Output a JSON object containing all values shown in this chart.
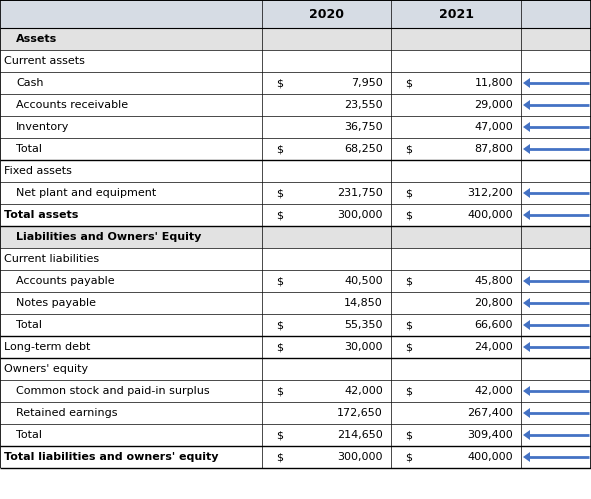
{
  "rows": [
    {
      "label": "Assets",
      "val2020": "",
      "val2021": "",
      "type": "section_bold",
      "indent": 1,
      "dollar2020": false,
      "dollar2021": false,
      "arrow": false
    },
    {
      "label": "Current assets",
      "val2020": "",
      "val2021": "",
      "type": "section",
      "indent": 0,
      "dollar2020": false,
      "dollar2021": false,
      "arrow": false
    },
    {
      "label": "Cash",
      "val2020": "7,950",
      "val2021": "11,800",
      "type": "item",
      "indent": 1,
      "dollar2020": true,
      "dollar2021": true,
      "arrow": true
    },
    {
      "label": "Accounts receivable",
      "val2020": "23,550",
      "val2021": "29,000",
      "type": "item",
      "indent": 1,
      "dollar2020": false,
      "dollar2021": false,
      "arrow": true
    },
    {
      "label": "Inventory",
      "val2020": "36,750",
      "val2021": "47,000",
      "type": "item",
      "indent": 1,
      "dollar2020": false,
      "dollar2021": false,
      "arrow": true
    },
    {
      "label": "Total",
      "val2020": "68,250",
      "val2021": "87,800",
      "type": "total",
      "indent": 1,
      "dollar2020": true,
      "dollar2021": true,
      "arrow": true
    },
    {
      "label": "Fixed assets",
      "val2020": "",
      "val2021": "",
      "type": "section",
      "indent": 0,
      "dollar2020": false,
      "dollar2021": false,
      "arrow": false
    },
    {
      "label": "Net plant and equipment",
      "val2020": "231,750",
      "val2021": "312,200",
      "type": "item",
      "indent": 1,
      "dollar2020": true,
      "dollar2021": true,
      "arrow": true
    },
    {
      "label": "Total assets",
      "val2020": "300,000",
      "val2021": "400,000",
      "type": "total_bold",
      "indent": 0,
      "dollar2020": true,
      "dollar2021": true,
      "arrow": true
    },
    {
      "label": "Liabilities and Owners' Equity",
      "val2020": "",
      "val2021": "",
      "type": "section_bold",
      "indent": 1,
      "dollar2020": false,
      "dollar2021": false,
      "arrow": false
    },
    {
      "label": "Current liabilities",
      "val2020": "",
      "val2021": "",
      "type": "section",
      "indent": 0,
      "dollar2020": false,
      "dollar2021": false,
      "arrow": false
    },
    {
      "label": "Accounts payable",
      "val2020": "40,500",
      "val2021": "45,800",
      "type": "item",
      "indent": 1,
      "dollar2020": true,
      "dollar2021": true,
      "arrow": true
    },
    {
      "label": "Notes payable",
      "val2020": "14,850",
      "val2021": "20,800",
      "type": "item",
      "indent": 1,
      "dollar2020": false,
      "dollar2021": false,
      "arrow": true
    },
    {
      "label": "Total",
      "val2020": "55,350",
      "val2021": "66,600",
      "type": "total",
      "indent": 1,
      "dollar2020": true,
      "dollar2021": true,
      "arrow": true
    },
    {
      "label": "Long-term debt",
      "val2020": "30,000",
      "val2021": "24,000",
      "type": "total",
      "indent": 0,
      "dollar2020": true,
      "dollar2021": true,
      "arrow": true
    },
    {
      "label": "Owners' equity",
      "val2020": "",
      "val2021": "",
      "type": "section",
      "indent": 0,
      "dollar2020": false,
      "dollar2021": false,
      "arrow": false
    },
    {
      "label": "Common stock and paid-in surplus",
      "val2020": "42,000",
      "val2021": "42,000",
      "type": "item",
      "indent": 1,
      "dollar2020": true,
      "dollar2021": true,
      "arrow": true
    },
    {
      "label": "Retained earnings",
      "val2020": "172,650",
      "val2021": "267,400",
      "type": "item",
      "indent": 1,
      "dollar2020": false,
      "dollar2021": false,
      "arrow": true
    },
    {
      "label": "Total",
      "val2020": "214,650",
      "val2021": "309,400",
      "type": "total",
      "indent": 1,
      "dollar2020": true,
      "dollar2021": true,
      "arrow": true
    },
    {
      "label": "Total liabilities and owners' equity",
      "val2020": "300,000",
      "val2021": "400,000",
      "type": "total_bold",
      "indent": 0,
      "dollar2020": true,
      "dollar2021": true,
      "arrow": true
    }
  ],
  "col_headers": [
    "2020",
    "2021"
  ],
  "header_bg": "#d6dce4",
  "section_bold_bg": "#e2e2e2",
  "row_bg_white": "#ffffff",
  "border_color": "#000000",
  "arrow_color": "#4472c4",
  "text_color": "#000000",
  "figsize": [
    5.91,
    4.99
  ],
  "dpi": 100
}
